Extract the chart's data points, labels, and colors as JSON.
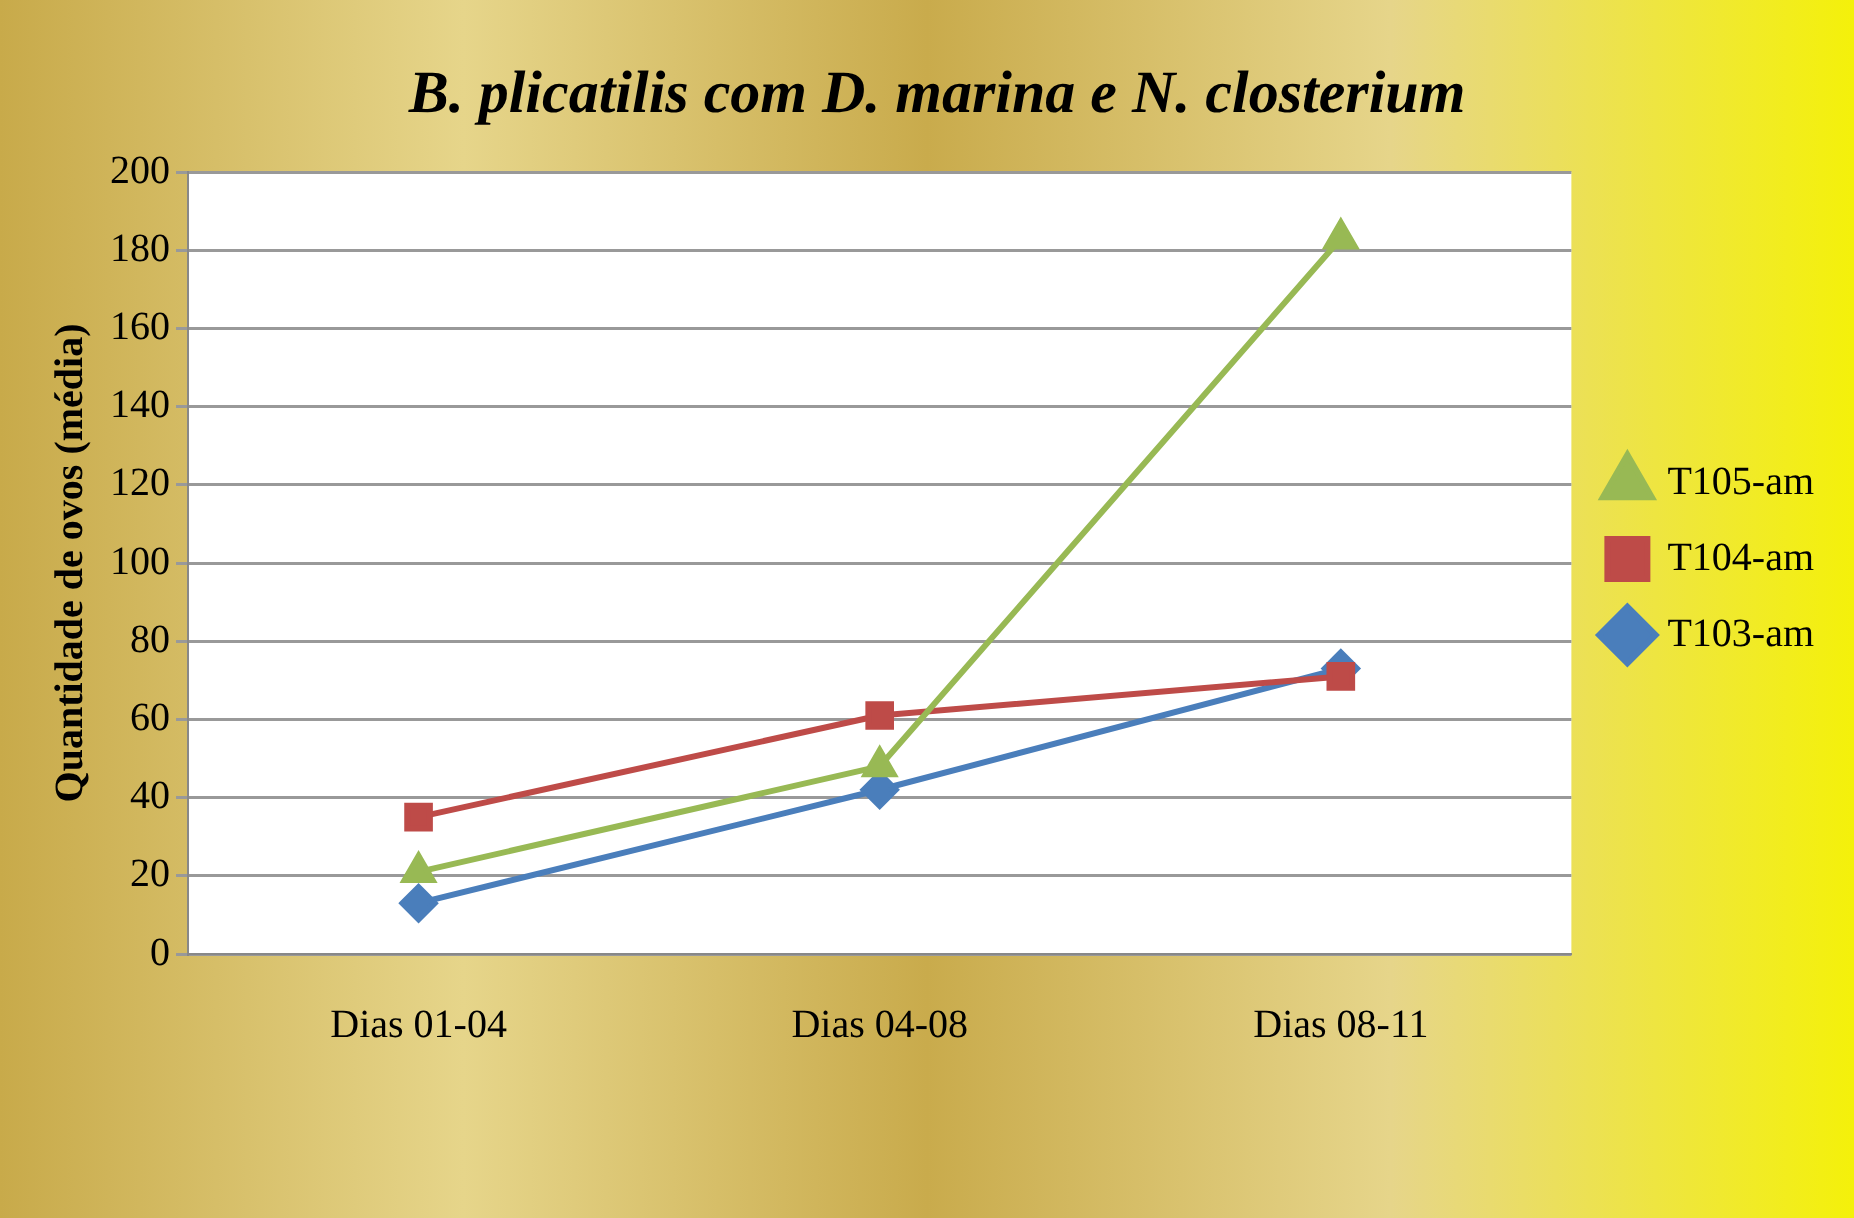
{
  "chart_data": {
    "type": "line",
    "title": "B. plicatilis com D. marina e N. closterium",
    "ylabel": "Quantidade de ovos (média)",
    "categories": [
      "Dias 01-04",
      "Dias 04-08",
      "Dias 08-11"
    ],
    "series": [
      {
        "name": "T103-am",
        "color": "#4a7ebb",
        "marker": "diamond",
        "values": [
          13,
          42,
          73
        ]
      },
      {
        "name": "T104-am",
        "color": "#be4b48",
        "marker": "square",
        "values": [
          35,
          61,
          71
        ]
      },
      {
        "name": "T105-am",
        "color": "#98b954",
        "marker": "triangle",
        "values": [
          21,
          48,
          183
        ]
      }
    ],
    "ylim": [
      0,
      200
    ],
    "yticks": [
      0,
      20,
      40,
      60,
      80,
      100,
      120,
      140,
      160,
      180,
      200
    ],
    "grid": "y",
    "legend": "right",
    "line_style": "solid"
  }
}
